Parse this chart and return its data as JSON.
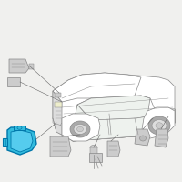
{
  "bg_color": "#f0f0ee",
  "car_outline": "#888888",
  "car_face": "#ffffff",
  "car_lw": 0.5,
  "highlight_color": "#1aabcc",
  "highlight_fill": "#33bbdd",
  "highlight_edge": "#0077aa",
  "parts_face": "#cccccc",
  "parts_edge": "#888888",
  "line_color": "#666666",
  "line_lw": 0.4,
  "parts_lw": 0.5
}
